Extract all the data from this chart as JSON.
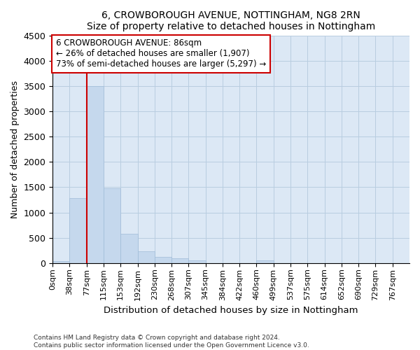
{
  "title": "6, CROWBOROUGH AVENUE, NOTTINGHAM, NG8 2RN",
  "subtitle": "Size of property relative to detached houses in Nottingham",
  "xlabel": "Distribution of detached houses by size in Nottingham",
  "ylabel": "Number of detached properties",
  "bar_color": "#c5d8ed",
  "bar_edge_color": "#a0bcd8",
  "categories": [
    "0sqm",
    "38sqm",
    "77sqm",
    "115sqm",
    "153sqm",
    "192sqm",
    "230sqm",
    "268sqm",
    "307sqm",
    "345sqm",
    "384sqm",
    "422sqm",
    "460sqm",
    "499sqm",
    "537sqm",
    "575sqm",
    "614sqm",
    "652sqm",
    "690sqm",
    "729sqm",
    "767sqm"
  ],
  "values": [
    35,
    1280,
    3500,
    1480,
    575,
    240,
    130,
    90,
    55,
    0,
    0,
    0,
    50,
    0,
    0,
    0,
    0,
    0,
    0,
    0,
    0
  ],
  "ylim": [
    0,
    4500
  ],
  "yticks": [
    0,
    500,
    1000,
    1500,
    2000,
    2500,
    3000,
    3500,
    4000,
    4500
  ],
  "vline_x": 2,
  "vline_color": "#cc0000",
  "annotation_title": "6 CROWBOROUGH AVENUE: 86sqm",
  "annotation_line1": "← 26% of detached houses are smaller (1,907)",
  "annotation_line2": "73% of semi-detached houses are larger (5,297) →",
  "annotation_box_facecolor": "#ffffff",
  "annotation_box_edgecolor": "#cc0000",
  "footer1": "Contains HM Land Registry data © Crown copyright and database right 2024.",
  "footer2": "Contains public sector information licensed under the Open Government Licence v3.0.",
  "background_color": "#ffffff",
  "plot_bg_color": "#dce8f5",
  "grid_color": "#b8cde0"
}
